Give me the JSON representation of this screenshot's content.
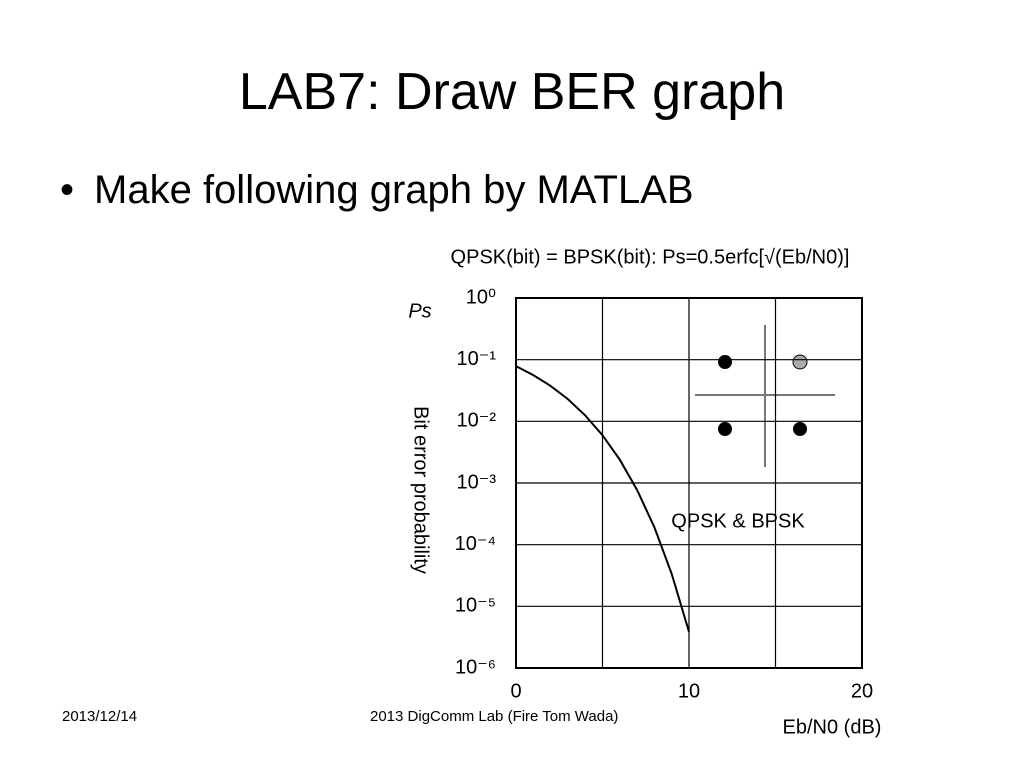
{
  "title": "LAB7:  Draw BER graph",
  "bullets": [
    "Make following graph by MATLAB"
  ],
  "chart_data": {
    "type": "line",
    "title": "QPSK(bit) = BPSK(bit): Ps=0.5erfc[√(Eb/N0)]",
    "y_symbol": "Ps",
    "ylabel": "Bit error probability",
    "xlabel": "Eb/N0 (dB)",
    "annotation": "QPSK & BPSK",
    "x": [
      0,
      1,
      2,
      3,
      4,
      5,
      6,
      7,
      8,
      9,
      10
    ],
    "values": [
      0.0786,
      0.0563,
      0.0375,
      0.0229,
      0.0125,
      0.00595,
      0.00239,
      0.00077,
      0.000191,
      3.36e-05,
      3.87e-06
    ],
    "color": "#000000",
    "log_y": true,
    "xlim": [
      0,
      20
    ],
    "xticks": [
      0,
      10,
      20
    ],
    "xgrid": [
      0,
      5,
      10,
      15,
      20
    ],
    "ylim": [
      1e-06,
      1
    ],
    "yticks": [
      {
        "value": 1,
        "label": "10⁰"
      },
      {
        "value": 0.1,
        "label": "10⁻¹"
      },
      {
        "value": 0.01,
        "label": "10⁻²"
      },
      {
        "value": 0.001,
        "label": "10⁻³"
      },
      {
        "value": 0.0001,
        "label": "10⁻⁴"
      },
      {
        "value": 1e-05,
        "label": "10⁻⁵"
      },
      {
        "value": 1e-06,
        "label": "10⁻⁶"
      }
    ],
    "grid": true
  },
  "footer": {
    "date": "2013/12/14",
    "credit": "2013 DigComm Lab (Fire Tom Wada)"
  }
}
